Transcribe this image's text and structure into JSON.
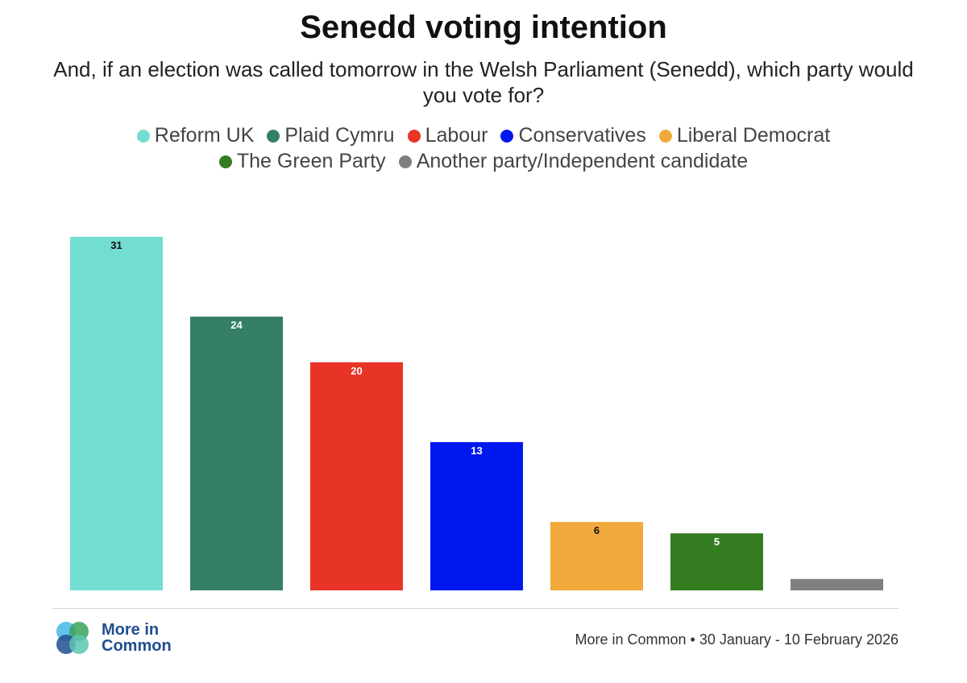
{
  "chart_data": {
    "type": "bar",
    "title": "Senedd voting intention",
    "subtitle": "And, if an election was called tomorrow in the Welsh Parliament (Senedd), which party would you vote for?",
    "categories": [
      "Reform UK",
      "Plaid Cymru",
      "Labour",
      "Conservatives",
      "Liberal Democrat",
      "The Green Party",
      "Another party/Independent candidate"
    ],
    "values": [
      31,
      24,
      20,
      13,
      6,
      5,
      1
    ],
    "data_labels": [
      "31",
      "24",
      "20",
      "13",
      "6",
      "5",
      ""
    ],
    "colors": [
      "#74ddd2",
      "#357f66",
      "#e73427",
      "#0018f0",
      "#f2a93c",
      "#347c20",
      "#7f7f7f"
    ],
    "label_colors": [
      "#111111",
      "#ffffff",
      "#ffffff",
      "#ffffff",
      "#111111",
      "#ffffff",
      "#ffffff"
    ],
    "legend_rows": [
      [
        "Reform UK",
        "Plaid Cymru",
        "Labour",
        "Conservatives",
        "Liberal Democrat"
      ],
      [
        "The Green Party",
        "Another party/Independent candidate"
      ]
    ],
    "ylim": [
      0,
      31
    ],
    "grid": false,
    "legend_position": "top"
  },
  "footer": {
    "brand_line1": "More in",
    "brand_line2": "Common",
    "source": "More in Common • 30 January - 10 February 2026"
  },
  "logo": {
    "icon": "more-in-common-logo-icon",
    "colors": [
      "#46b6e8",
      "#3aa35a",
      "#1f4f8f",
      "#5cc6b0"
    ]
  }
}
